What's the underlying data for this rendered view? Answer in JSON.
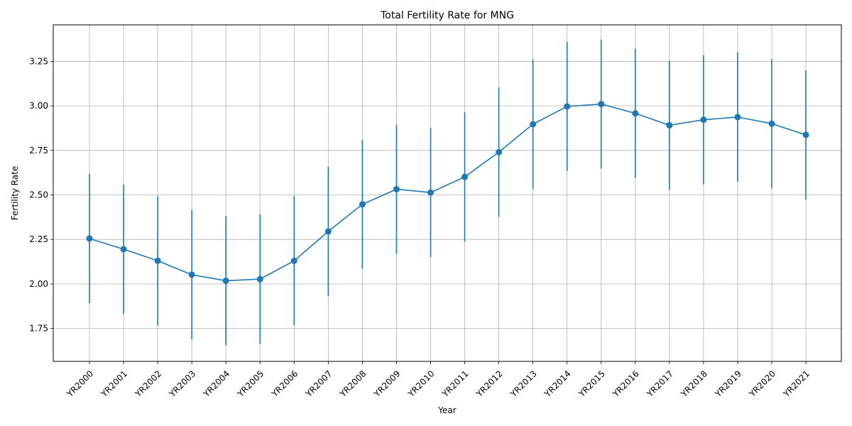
{
  "chart_data": {
    "type": "line",
    "title": "Total Fertility Rate for MNG",
    "xlabel": "Year",
    "ylabel": "Fertility Rate",
    "categories": [
      "YR2000",
      "YR2001",
      "YR2002",
      "YR2003",
      "YR2004",
      "YR2005",
      "YR2006",
      "YR2007",
      "YR2008",
      "YR2009",
      "YR2010",
      "YR2011",
      "YR2012",
      "YR2013",
      "YR2014",
      "YR2015",
      "YR2016",
      "YR2017",
      "YR2018",
      "YR2019",
      "YR2020",
      "YR2021"
    ],
    "values": [
      2.255,
      2.195,
      2.13,
      2.052,
      2.018,
      2.027,
      2.13,
      2.295,
      2.447,
      2.532,
      2.513,
      2.601,
      2.74,
      2.897,
      2.997,
      3.01,
      2.958,
      2.891,
      2.922,
      2.937,
      2.9,
      2.837
    ],
    "error_lower": [
      1.892,
      1.832,
      1.767,
      1.689,
      1.655,
      1.664,
      1.767,
      1.932,
      2.084,
      2.169,
      2.15,
      2.238,
      2.377,
      2.534,
      2.634,
      2.647,
      2.595,
      2.528,
      2.559,
      2.574,
      2.537,
      2.474
    ],
    "error_upper": [
      2.618,
      2.558,
      2.493,
      2.415,
      2.381,
      2.39,
      2.493,
      2.658,
      2.81,
      2.895,
      2.876,
      2.964,
      3.103,
      3.26,
      3.36,
      3.373,
      3.321,
      3.254,
      3.285,
      3.3,
      3.263,
      3.2
    ],
    "yticks": [
      "1.75",
      "2.00",
      "2.25",
      "2.50",
      "2.75",
      "3.00",
      "3.25"
    ],
    "ylim": [
      1.565,
      3.455
    ],
    "grid": true,
    "color": "#1f77b4"
  }
}
